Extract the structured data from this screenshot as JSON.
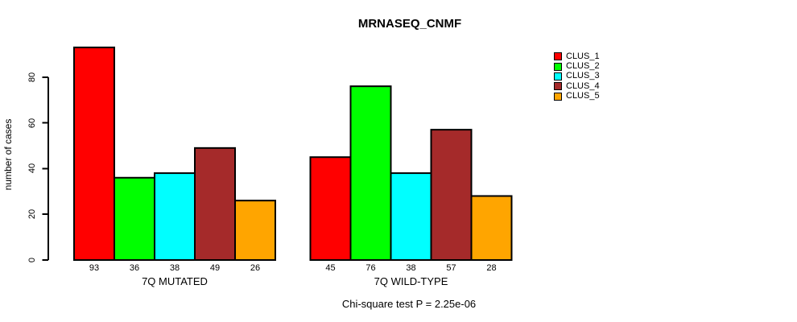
{
  "chart_data": {
    "type": "bar",
    "title": "MRNASEQ_CNMF",
    "ylabel": "number of cases",
    "xlabel": "",
    "caption": "Chi-square test P = 2.25e-06",
    "categories": [
      "7Q MUTATED",
      "7Q WILD-TYPE"
    ],
    "series": [
      {
        "name": "CLUS_1",
        "color": "#FF0000",
        "values": [
          93,
          45
        ]
      },
      {
        "name": "CLUS_2",
        "color": "#00FF00",
        "values": [
          36,
          76
        ]
      },
      {
        "name": "CLUS_3",
        "color": "#00FFFF",
        "values": [
          38,
          38
        ]
      },
      {
        "name": "CLUS_4",
        "color": "#A52A2A",
        "values": [
          49,
          57
        ]
      },
      {
        "name": "CLUS_5",
        "color": "#FFA500",
        "values": [
          26,
          28
        ]
      }
    ],
    "bar_value_labels": [
      [
        "93",
        "36",
        "38",
        "49",
        "26"
      ],
      [
        "45",
        "76",
        "38",
        "57",
        "28"
      ]
    ],
    "y_ticks": [
      0,
      20,
      40,
      60,
      80
    ],
    "ylim": [
      0,
      93
    ],
    "grid": "off",
    "legend_position": "right",
    "bar_outline_color": "#000000",
    "text_color": "#000000",
    "background_color": "#FFFFFF"
  }
}
